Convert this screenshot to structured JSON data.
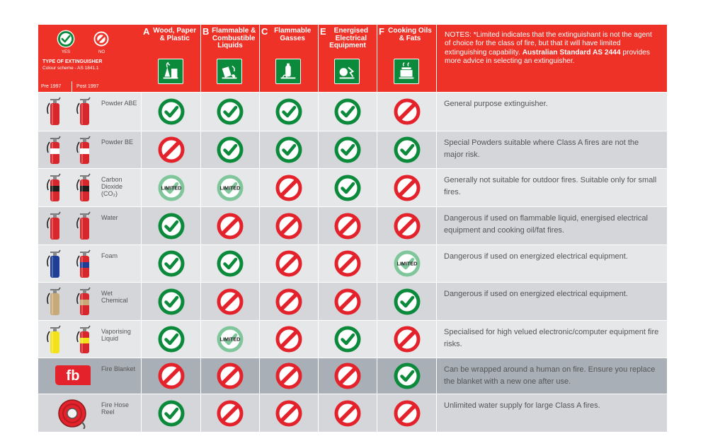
{
  "header": {
    "yes_label": "YES",
    "no_label": "NO",
    "type_title": "TYPE OF EXTINGUISHER",
    "colour_scheme": "Colour scheme - AS 1841.1",
    "pre_label": "Pre 1997",
    "post_label": "Post 1997",
    "notes_part1": "NOTES: *Limited indicates that the extinguishant is not the agent of choice for the class of fire, but that it will have limited extinguishing capability. ",
    "notes_part2": "Australian Standard AS 2444",
    "notes_part3": " provides more advice in selecting an extinguisher."
  },
  "fire_classes": [
    {
      "letter": "A",
      "label": "Wood, Paper & Plastic",
      "icon": "wood-paper-plastic-icon"
    },
    {
      "letter": "B",
      "label": "Flammable & Combustible Liquids",
      "icon": "flammable-liquids-icon"
    },
    {
      "letter": "C",
      "label": "Flammable Gasses",
      "icon": "flammable-gas-icon"
    },
    {
      "letter": "E",
      "label": "Energised Electrical Equipment",
      "icon": "electrical-equipment-icon"
    },
    {
      "letter": "F",
      "label": "Cooking Oils & Fats",
      "icon": "cooking-oils-icon"
    }
  ],
  "limited_label": "LIMITED",
  "colors": {
    "header_red": "#ee3227",
    "yes_green": "#0b8a3b",
    "no_red": "#e3222b",
    "limited_green": "#7fc69a",
    "row_light": "#e6e7e9",
    "row_mid": "#d4d6d9",
    "row_dark": "#a9afb6"
  },
  "rows": [
    {
      "name": "Powder ABE",
      "body": "#d7272d",
      "band": "#d7272d",
      "ratings": [
        "yes",
        "yes",
        "yes",
        "yes",
        "no"
      ],
      "comment": "General purpose extinguisher."
    },
    {
      "name": "Powder BE",
      "body": "#d7272d",
      "band": "#ffffff",
      "ratings": [
        "no",
        "yes",
        "yes",
        "yes",
        "yes"
      ],
      "comment": "Special Powders suitable where Class A fires are not the major risk."
    },
    {
      "name": "Carbon Dioxide (CO₂)",
      "body": "#d7272d",
      "band": "#1d1d1d",
      "ratings": [
        "limited",
        "limited",
        "no",
        "yes",
        "no"
      ],
      "comment": "Generally not suitable for outdoor fires. Suitable only for small fires."
    },
    {
      "name": "Water",
      "body": "#d7272d",
      "band": "#d7272d",
      "ratings": [
        "yes",
        "no",
        "no",
        "no",
        "no"
      ],
      "comment": "Dangerous if used on flammable liquid, energised electrical equipment and cooking oil/fat fires."
    },
    {
      "name": "Foam",
      "body": "#d7272d",
      "band": "#1f3f97",
      "ratings": [
        "yes",
        "yes",
        "no",
        "no",
        "limited"
      ],
      "comment": "Dangerous if used on energized electrical equipment."
    },
    {
      "name": "Wet Chemical",
      "body": "#d7272d",
      "band": "#c8a97a",
      "ratings": [
        "yes",
        "no",
        "no",
        "no",
        "yes"
      ],
      "comment": "Dangerous if used on energized electrical equipment."
    },
    {
      "name": "Vaporising Liquid",
      "body": "#d7272d",
      "band": "#f3e21a",
      "ratings": [
        "yes",
        "limited",
        "no",
        "yes",
        "no"
      ],
      "comment": "Specialised for high velued electronic/computer equipment fire risks."
    },
    {
      "name": "Fire Blanket",
      "logo_text": "fb",
      "ratings": [
        "no",
        "no",
        "no",
        "no",
        "yes"
      ],
      "comment": "Can be wrapped around a human on fire. Ensure you replace the blanket with a new one after use."
    },
    {
      "name": "Fire Hose Reel",
      "ratings": [
        "yes",
        "no",
        "no",
        "no",
        "no"
      ],
      "comment": "Unlimited water supply for large Class A fires."
    }
  ]
}
